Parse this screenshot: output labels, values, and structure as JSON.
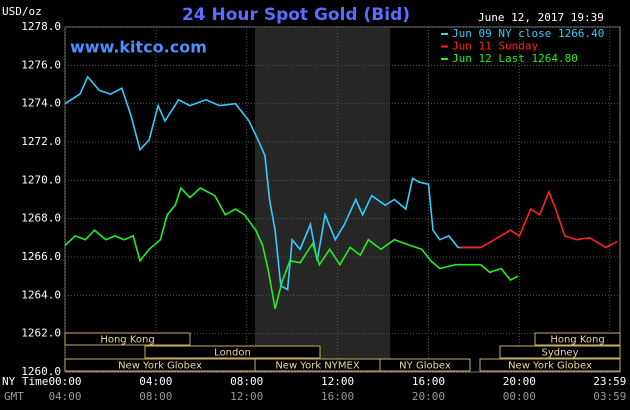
{
  "chart_data": {
    "type": "line",
    "title": "24 Hour Spot Gold (Bid)",
    "subtitle": "www.kitco.com",
    "timestamp": "June 12, 2017 19:39",
    "y_label": "USD/oz",
    "x_label": "NY Time",
    "x2_label": "GMT",
    "xlim": [
      0,
      24.43
    ],
    "ylim": [
      1260,
      1278
    ],
    "xticks": [
      {
        "value": 0,
        "label": "00:00"
      },
      {
        "value": 4,
        "label": "04:00"
      },
      {
        "value": 8,
        "label": "08:00"
      },
      {
        "value": 12,
        "label": "12:00"
      },
      {
        "value": 16,
        "label": "16:00"
      },
      {
        "value": 20,
        "label": "20:00"
      },
      {
        "value": 23.98,
        "label": "23:59"
      }
    ],
    "x2ticks": [
      {
        "value": 0,
        "label": "04:00"
      },
      {
        "value": 4,
        "label": "08:00"
      },
      {
        "value": 8,
        "label": "12:00"
      },
      {
        "value": 12,
        "label": "16:00"
      },
      {
        "value": 16,
        "label": "20:00"
      },
      {
        "value": 20,
        "label": "00:00"
      },
      {
        "value": 23.98,
        "label": "03:59"
      }
    ],
    "yticks": [
      {
        "value": 1260,
        "label": "1260.0"
      },
      {
        "value": 1262,
        "label": "1262.0"
      },
      {
        "value": 1264,
        "label": "1264.0"
      },
      {
        "value": 1266,
        "label": "1266.0"
      },
      {
        "value": 1268,
        "label": "1268.0"
      },
      {
        "value": 1270,
        "label": "1270.0"
      },
      {
        "value": 1272,
        "label": "1272.0"
      },
      {
        "value": 1274,
        "label": "1274.0"
      },
      {
        "value": 1276,
        "label": "1276.0"
      },
      {
        "value": 1278,
        "label": "1278.0"
      }
    ],
    "grid": true,
    "legend": "top-right",
    "sessions": [
      "Hong Kong",
      "London",
      "New York Globex",
      "New York NYMEX",
      "NY Globex",
      "Hong Kong",
      "Sydney",
      "New York Globex"
    ],
    "series": [
      {
        "name": "Jun 09 NY close 1266.40",
        "color": "#33ccff",
        "x": [
          0,
          0.66,
          1.0,
          1.5,
          2.0,
          2.5,
          2.9,
          3.3,
          3.7,
          4.1,
          4.4,
          5.0,
          5.5,
          6.2,
          6.8,
          7.5,
          8.1,
          8.5,
          8.8,
          9.0,
          9.25,
          9.5,
          9.8,
          10.0,
          10.35,
          10.8,
          11.1,
          11.45,
          11.9,
          12.3,
          12.8,
          13.1,
          13.5,
          14.1,
          14.5,
          15.0,
          15.3,
          15.6,
          16.0,
          16.2,
          16.5,
          16.9,
          17.3,
          18.3
        ],
        "values": [
          1274.0,
          1274.5,
          1275.4,
          1274.7,
          1274.5,
          1274.8,
          1273.4,
          1271.6,
          1272.1,
          1273.9,
          1273.1,
          1274.2,
          1273.9,
          1274.2,
          1273.9,
          1274.0,
          1273.1,
          1272.1,
          1271.3,
          1269.0,
          1267.4,
          1264.5,
          1264.3,
          1266.9,
          1266.4,
          1267.7,
          1265.8,
          1268.2,
          1266.9,
          1267.7,
          1269.0,
          1268.2,
          1269.2,
          1268.7,
          1269.0,
          1268.5,
          1270.1,
          1269.9,
          1269.8,
          1267.4,
          1266.9,
          1267.1,
          1266.5,
          1266.5
        ]
      },
      {
        "name": "Jun 11 Sunday",
        "color": "#ff2020",
        "x": [
          17.4,
          18.3,
          18.9,
          19.6,
          20.0,
          20.5,
          20.9,
          21.3,
          21.6,
          22.0,
          22.5,
          23.1,
          23.8,
          24.3
        ],
        "values": [
          1266.5,
          1266.5,
          1266.9,
          1267.4,
          1267.1,
          1268.5,
          1268.2,
          1269.4,
          1268.5,
          1267.1,
          1266.9,
          1267.0,
          1266.5,
          1266.8
        ]
      },
      {
        "name": "Jun 12 Last 1264.80",
        "color": "#22ee22",
        "x": [
          0,
          0.45,
          0.9,
          1.3,
          1.8,
          2.2,
          2.6,
          3.0,
          3.3,
          3.7,
          4.2,
          4.5,
          4.85,
          5.1,
          5.5,
          5.95,
          6.6,
          7.05,
          7.5,
          7.9,
          8.4,
          8.7,
          8.95,
          9.25,
          9.55,
          9.9,
          10.35,
          10.9,
          11.2,
          11.65,
          12.1,
          12.55,
          13.0,
          13.35,
          13.9,
          14.5,
          15.2,
          15.7,
          16.1,
          16.5,
          17.2,
          18.3,
          18.7,
          19.2,
          19.6,
          19.95
        ],
        "values": [
          1266.6,
          1267.1,
          1266.9,
          1267.4,
          1266.9,
          1267.1,
          1266.9,
          1267.1,
          1265.8,
          1266.4,
          1266.9,
          1268.2,
          1268.7,
          1269.6,
          1269.1,
          1269.6,
          1269.2,
          1268.2,
          1268.5,
          1268.2,
          1267.4,
          1266.6,
          1265.3,
          1263.3,
          1264.7,
          1265.8,
          1265.7,
          1266.7,
          1265.6,
          1266.4,
          1265.6,
          1266.5,
          1266.1,
          1266.9,
          1266.4,
          1266.9,
          1266.6,
          1266.4,
          1265.8,
          1265.4,
          1265.6,
          1265.6,
          1265.2,
          1265.4,
          1264.8,
          1265.0
        ]
      }
    ]
  }
}
